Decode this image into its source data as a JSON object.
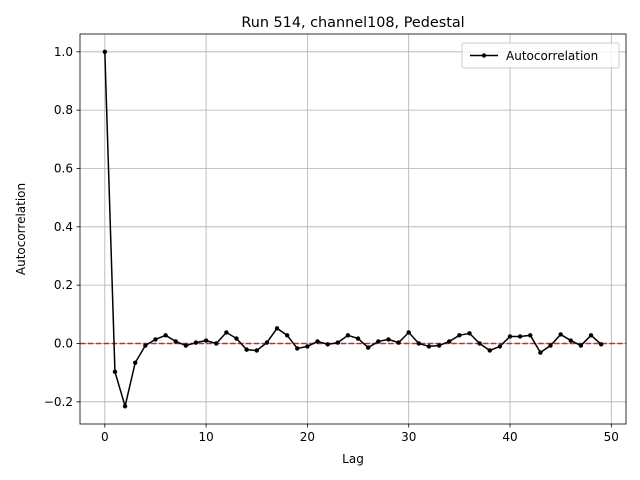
{
  "chart_data": {
    "type": "line",
    "title": "Run 514, channel108, Pedestal",
    "xlabel": "Lag",
    "ylabel": "Autocorrelation",
    "x": [
      0,
      1,
      2,
      3,
      4,
      5,
      6,
      7,
      8,
      9,
      10,
      11,
      12,
      13,
      14,
      15,
      16,
      17,
      18,
      19,
      20,
      21,
      22,
      23,
      24,
      25,
      26,
      27,
      28,
      29,
      30,
      31,
      32,
      33,
      34,
      35,
      36,
      37,
      38,
      39,
      40,
      41,
      42,
      43,
      44,
      45,
      46,
      47,
      48,
      49
    ],
    "series": [
      {
        "name": "Autocorrelation",
        "color": "#000000",
        "values": [
          1.0,
          -0.097,
          -0.215,
          -0.066,
          -0.007,
          0.014,
          0.028,
          0.007,
          -0.007,
          0.003,
          0.01,
          0.0,
          0.038,
          0.017,
          -0.021,
          -0.024,
          0.003,
          0.052,
          0.028,
          -0.017,
          -0.01,
          0.007,
          -0.003,
          0.003,
          0.028,
          0.017,
          -0.014,
          0.007,
          0.014,
          0.003,
          0.038,
          0.0,
          -0.01,
          -0.007,
          0.007,
          0.028,
          0.035,
          0.0,
          -0.024,
          -0.01,
          0.024,
          0.024,
          0.028,
          -0.031,
          -0.007,
          0.031,
          0.01,
          -0.007,
          0.028,
          -0.003
        ]
      }
    ],
    "hline": {
      "value": 0,
      "color": "#d62728"
    },
    "xlim": [
      -2.45,
      51.45
    ],
    "xticks": [
      0,
      10,
      20,
      30,
      40,
      50
    ],
    "ylim": [
      -0.276,
      1.061
    ],
    "yticks": [
      {
        "value": -0.2,
        "label": "−0.2"
      },
      {
        "value": 0,
        "label": "0.0"
      },
      0.2,
      0.4,
      0.6,
      0.8,
      {
        "value": 1.0,
        "label": "1.0"
      }
    ],
    "grid": true,
    "legend": "upper right"
  }
}
